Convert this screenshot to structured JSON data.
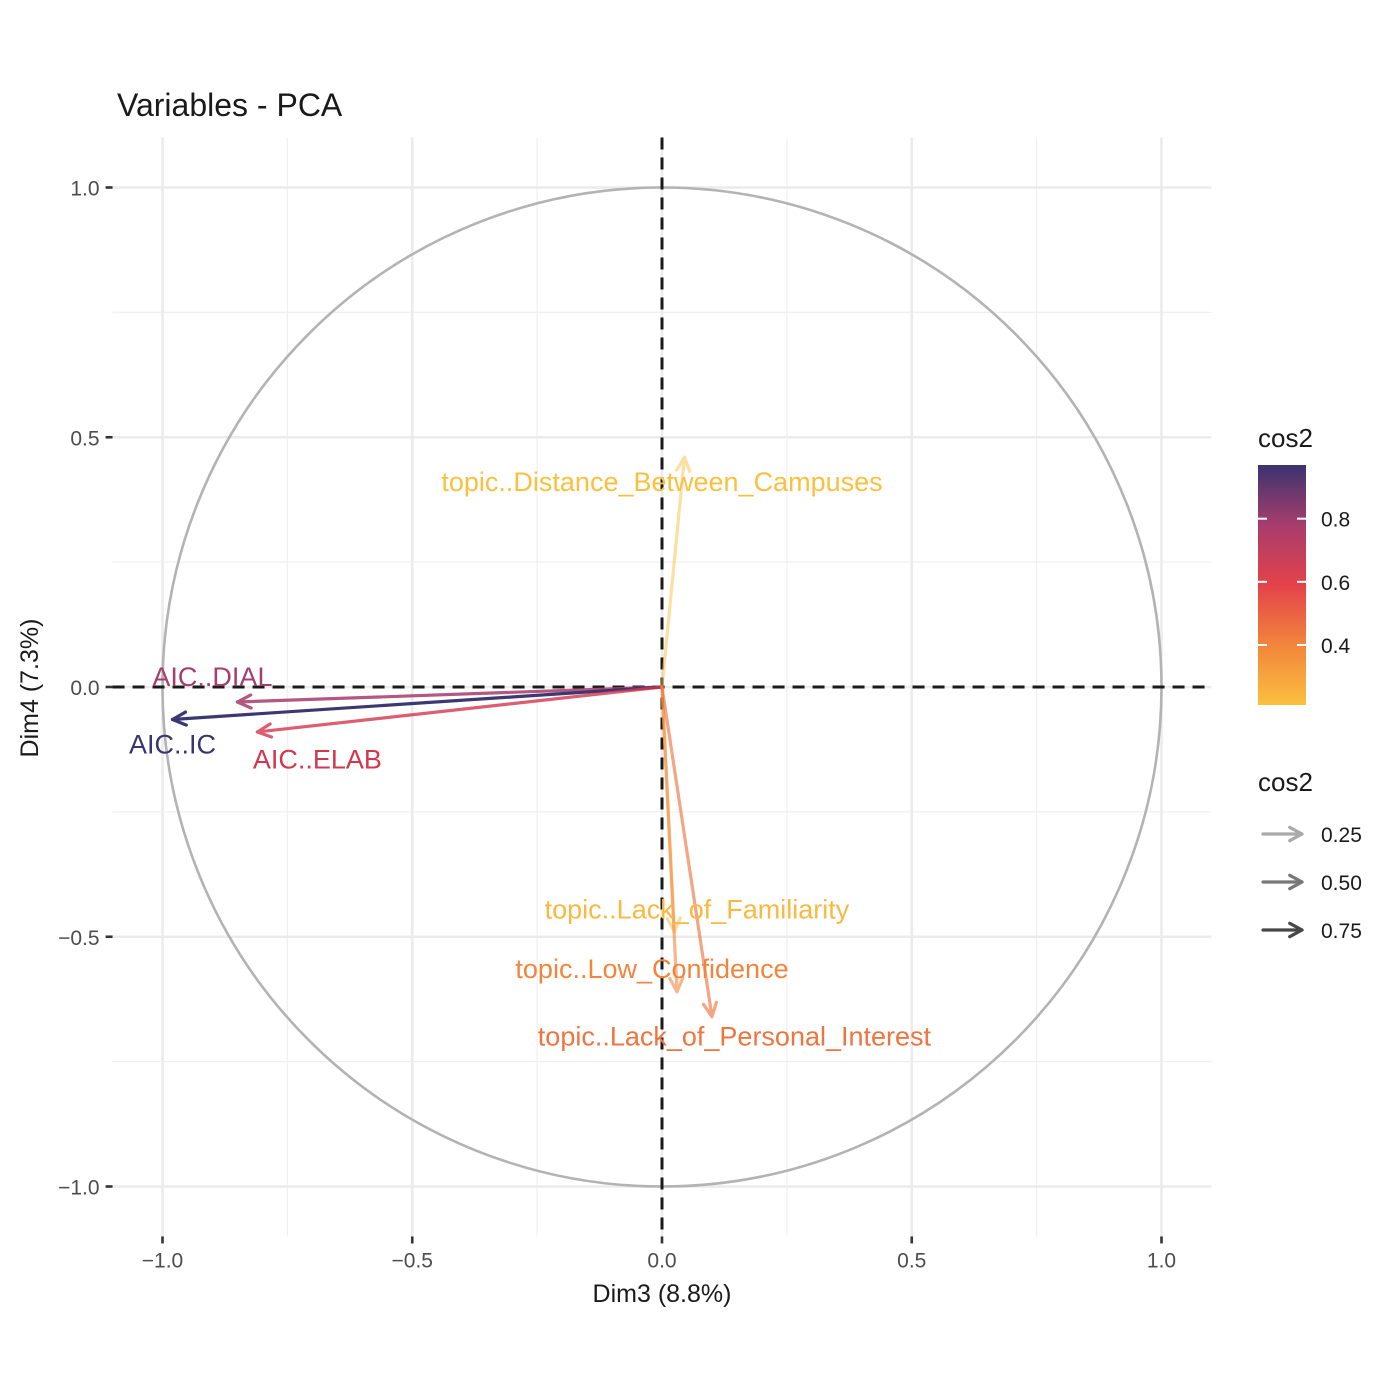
{
  "chart_data": {
    "type": "scatter",
    "title": "Variables - PCA",
    "xlabel": "Dim3 (8.8%)",
    "ylabel": "Dim4 (7.3%)",
    "xlim": [
      -1.1,
      1.1
    ],
    "ylim": [
      -1.1,
      1.1
    ],
    "x_ticks": [
      -1.0,
      -0.5,
      0.0,
      0.5,
      1.0
    ],
    "y_ticks": [
      -1.0,
      -0.5,
      0.0,
      0.5,
      1.0
    ],
    "x_tick_labels": [
      "−1.0",
      "−0.5",
      "0.0",
      "0.5",
      "1.0"
    ],
    "y_tick_labels": [
      "−1.0",
      "−0.5",
      "0.0",
      "0.5",
      "1.0"
    ],
    "grid": true,
    "correlation_circle": true,
    "variables": [
      {
        "name": "AIC..DIAL",
        "x": -0.85,
        "y": -0.03,
        "cos2": 0.78,
        "color": "#a73d6c",
        "label_x": -0.9,
        "label_y": 0.02
      },
      {
        "name": "AIC..IC",
        "x": -0.98,
        "y": -0.065,
        "cos2": 0.97,
        "color": "#3a3470",
        "label_x": -0.98,
        "label_y": -0.115
      },
      {
        "name": "AIC..ELAB",
        "x": -0.81,
        "y": -0.09,
        "cos2": 0.68,
        "color": "#d3364d",
        "label_x": -0.69,
        "label_y": -0.145
      },
      {
        "name": "topic..Distance_Between_Campuses",
        "x": 0.045,
        "y": 0.46,
        "cos2": 0.21,
        "color": "#fbbf3e",
        "label_x": 0.0,
        "label_y": 0.41
      },
      {
        "name": "topic..Lack_of_Familiarity",
        "x": 0.025,
        "y": -0.49,
        "cos2": 0.24,
        "color": "#f9b93f",
        "label_x": 0.07,
        "label_y": -0.445
      },
      {
        "name": "topic..Low_Confidence",
        "x": 0.03,
        "y": -0.61,
        "cos2": 0.37,
        "color": "#f2853c",
        "label_x": -0.02,
        "label_y": -0.565
      },
      {
        "name": "topic..Lack_of_Personal_Interest",
        "x": 0.1,
        "y": -0.66,
        "cos2": 0.45,
        "color": "#ee7440",
        "label_x": 0.145,
        "label_y": -0.7
      }
    ],
    "legend_color": {
      "title": "cos2",
      "labels": [
        "0.8",
        "0.6",
        "0.4"
      ],
      "values": [
        0.8,
        0.6,
        0.4
      ],
      "range": [
        0.21,
        0.97
      ],
      "colors": [
        "#fbbf3e",
        "#f2853c",
        "#e4424a",
        "#a73d6c",
        "#3a3470"
      ]
    },
    "legend_alpha": {
      "title": "cos2",
      "labels": [
        "0.25",
        "0.50",
        "0.75"
      ],
      "shades": [
        "#a9a9a9",
        "#787878",
        "#474747"
      ]
    }
  }
}
